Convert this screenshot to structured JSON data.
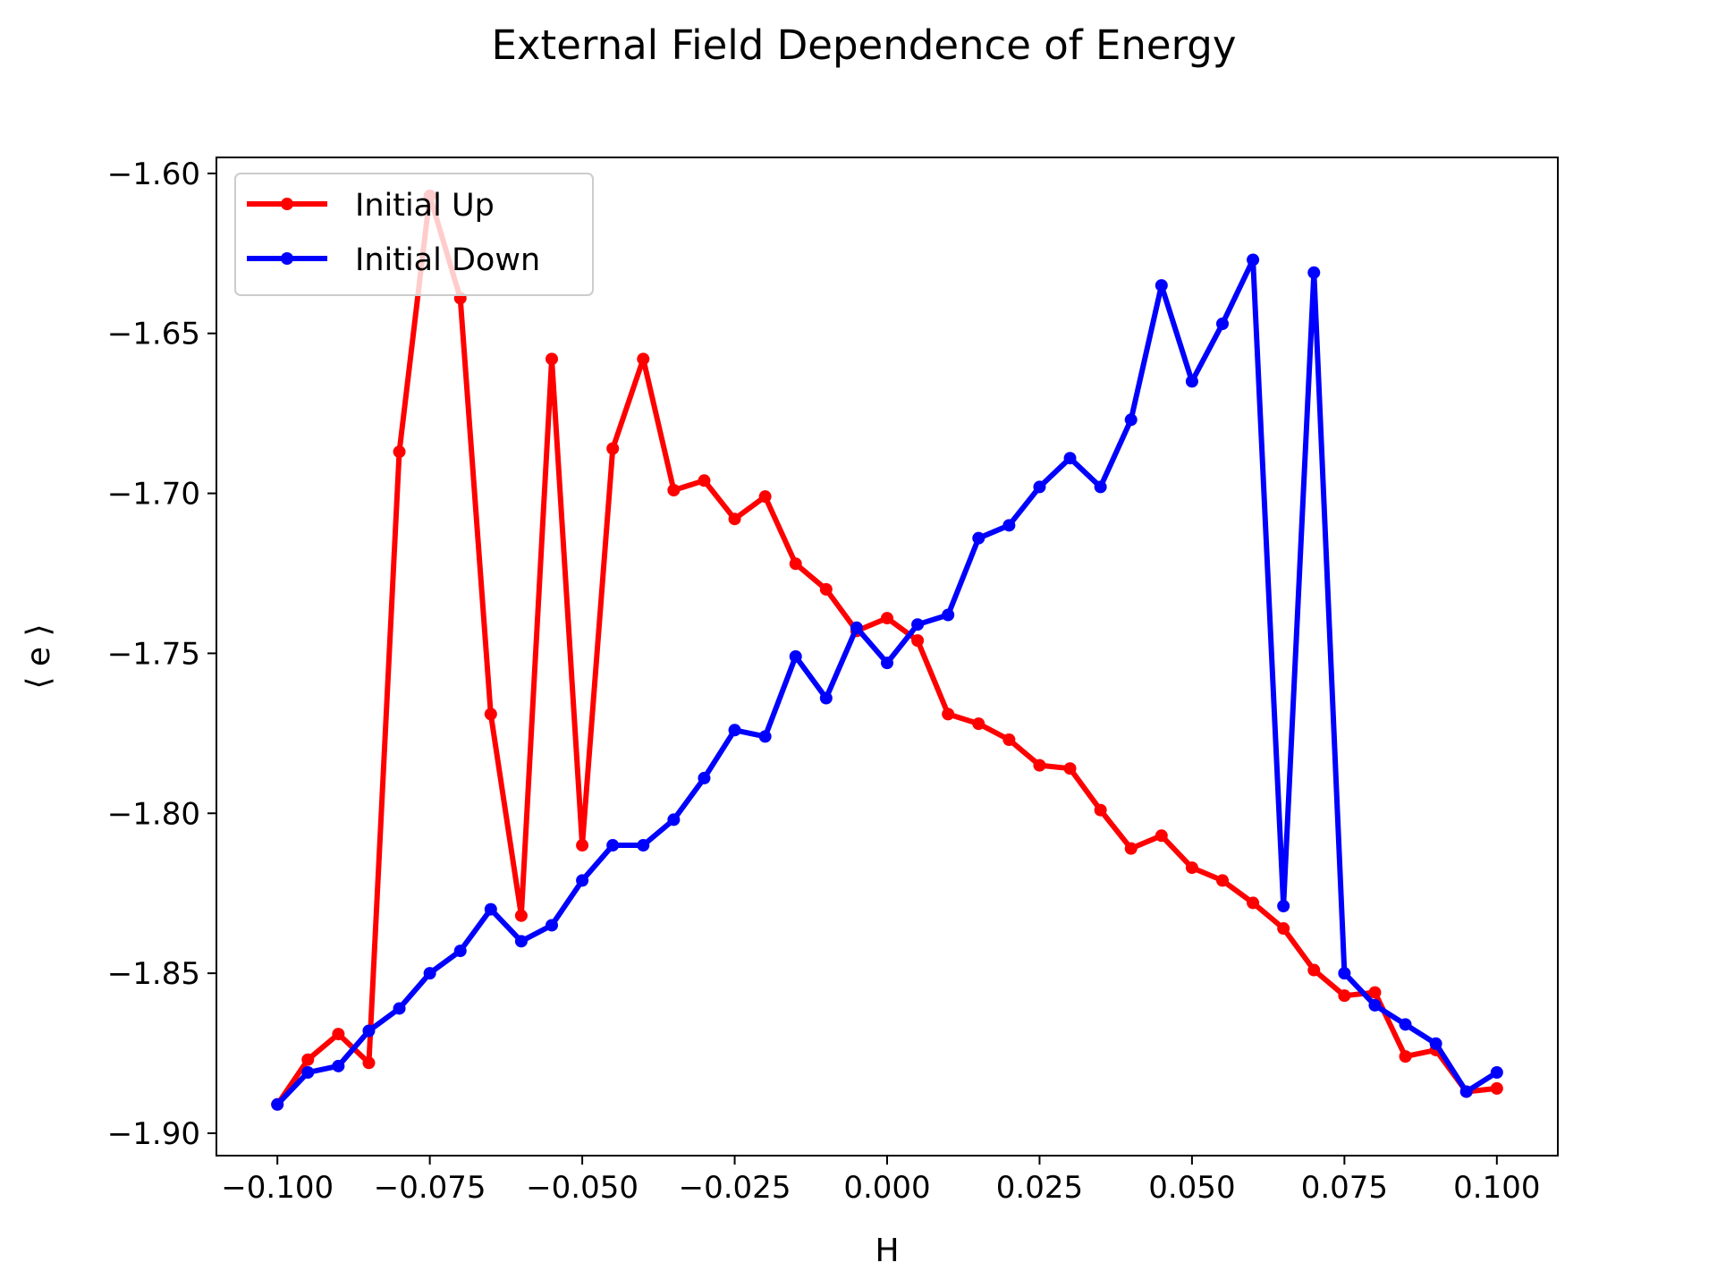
{
  "chart_data": {
    "type": "line",
    "title": "External Field Dependence of Energy",
    "xlabel": "H",
    "ylabel": "⟨ e ⟩",
    "xlim": [
      -0.11,
      0.11
    ],
    "ylim": [
      -1.907,
      -1.595
    ],
    "x_ticks": [
      -0.1,
      -0.075,
      -0.05,
      -0.025,
      0.0,
      0.025,
      0.05,
      0.075,
      0.1
    ],
    "x_tick_labels": [
      "−0.100",
      "−0.075",
      "−0.050",
      "−0.025",
      "0.000",
      "0.025",
      "0.050",
      "0.075",
      "0.100"
    ],
    "y_ticks": [
      -1.6,
      -1.65,
      -1.7,
      -1.75,
      -1.8,
      -1.85,
      -1.9
    ],
    "y_tick_labels": [
      "−1.60",
      "−1.65",
      "−1.70",
      "−1.75",
      "−1.80",
      "−1.85",
      "−1.90"
    ],
    "grid": false,
    "legend_position": "top-left",
    "x": [
      -0.1,
      -0.095,
      -0.09,
      -0.085,
      -0.08,
      -0.075,
      -0.07,
      -0.065,
      -0.06,
      -0.055,
      -0.05,
      -0.045,
      -0.04,
      -0.035,
      -0.03,
      -0.025,
      -0.02,
      -0.015,
      -0.01,
      -0.005,
      0.0,
      0.005,
      0.01,
      0.015,
      0.02,
      0.025,
      0.03,
      0.035,
      0.04,
      0.045,
      0.05,
      0.055,
      0.06,
      0.065,
      0.07,
      0.075,
      0.08,
      0.085,
      0.09,
      0.095,
      0.1
    ],
    "series": [
      {
        "name": "Initial Up",
        "color": "#ff0000",
        "values": [
          -1.891,
          -1.877,
          -1.869,
          -1.878,
          -1.687,
          -1.607,
          -1.639,
          -1.769,
          -1.832,
          -1.658,
          -1.81,
          -1.686,
          -1.658,
          -1.699,
          -1.696,
          -1.708,
          -1.701,
          -1.722,
          -1.73,
          -1.743,
          -1.739,
          -1.746,
          -1.769,
          -1.772,
          -1.777,
          -1.785,
          -1.786,
          -1.799,
          -1.811,
          -1.807,
          -1.817,
          -1.821,
          -1.828,
          -1.836,
          -1.849,
          -1.857,
          -1.856,
          -1.876,
          -1.874,
          -1.887,
          -1.886
        ]
      },
      {
        "name": "Initial Down",
        "color": "#0000ff",
        "values": [
          -1.891,
          -1.881,
          -1.879,
          -1.868,
          -1.861,
          -1.85,
          -1.843,
          -1.83,
          -1.84,
          -1.835,
          -1.821,
          -1.81,
          -1.81,
          -1.802,
          -1.789,
          -1.774,
          -1.776,
          -1.751,
          -1.764,
          -1.742,
          -1.753,
          -1.741,
          -1.738,
          -1.714,
          -1.71,
          -1.698,
          -1.689,
          -1.698,
          -1.677,
          -1.635,
          -1.665,
          -1.647,
          -1.627,
          -1.829,
          -1.631,
          -1.85,
          -1.86,
          -1.866,
          -1.872,
          -1.887,
          -1.881
        ]
      }
    ]
  }
}
